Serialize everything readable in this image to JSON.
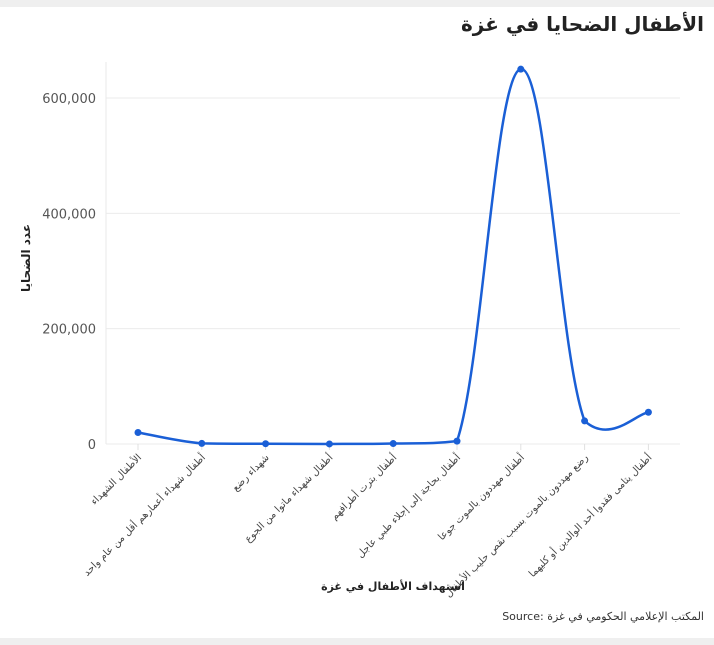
{
  "chart_data": {
    "type": "line",
    "title": "الأطفال الضحايا في غزة",
    "xlabel": "استهداف الأطفال في غزة",
    "ylabel": "عدد الضحايا",
    "ylim": [
      0,
      650000
    ],
    "yticks": [
      "0",
      "200,000",
      "400,000",
      "600,000"
    ],
    "ytick_values": [
      0,
      200000,
      400000,
      600000
    ],
    "grid": true,
    "categories": [
      "الأطفال الشهداء",
      "أطفال شهداء أعمارهم أقل من عام واحد",
      "شهداء رضع",
      "أطفال شهداء ماتوا من الجوع",
      "أطفال بترت أطرافهم",
      "أطفال بحاجة إلى إجلاء طبي عاجل",
      "أطفال مهددون بالموت جوعا",
      "رضع مهددون بالموت بسبب نقص حليب الأطفال",
      "أطفال يتامى فقدوا أحد الوالدين أو كليهما"
    ],
    "series": [
      {
        "name": "عدد الضحايا",
        "color": "#1a5fd6",
        "values": [
          20000,
          1000,
          500,
          100,
          800,
          5000,
          650000,
          40000,
          55000
        ]
      }
    ],
    "source": "Source: المكتب الإعلامي الحكومي في غزة"
  },
  "ui": {
    "source_text": "Source: المكتب الإعلامي الحكومي في غزة"
  }
}
